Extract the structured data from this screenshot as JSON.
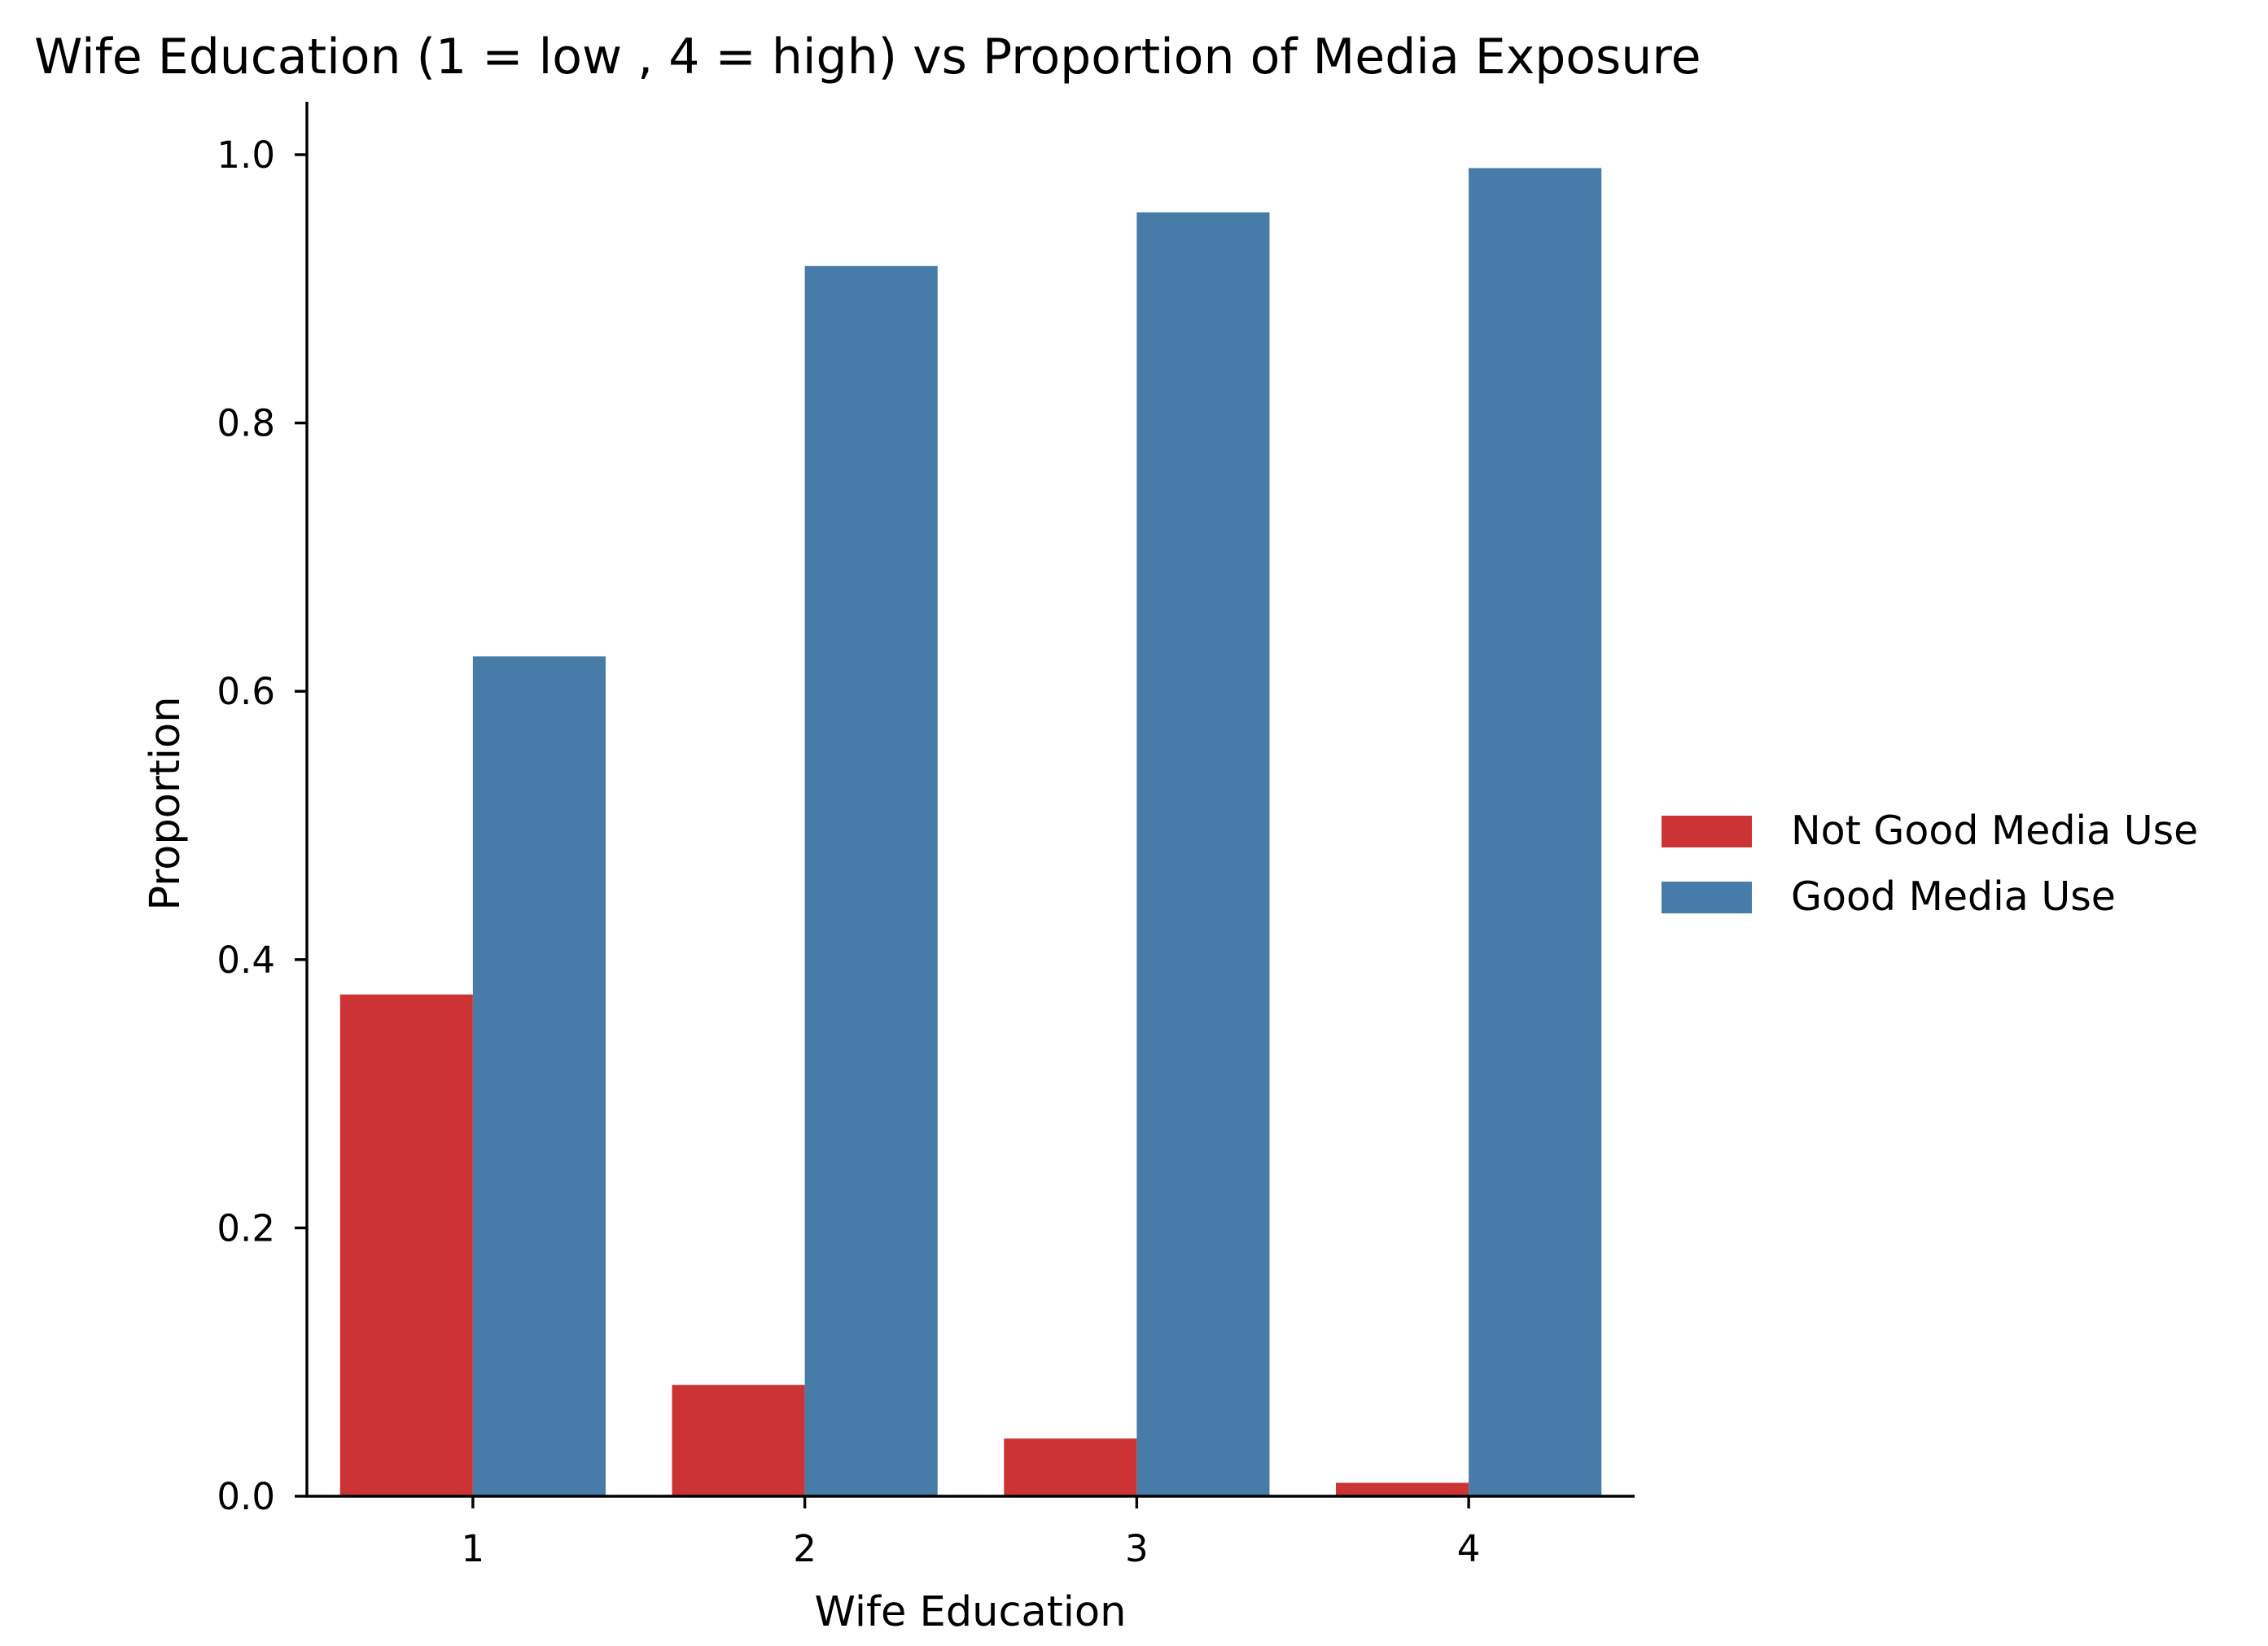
{
  "chart_data": {
    "type": "bar",
    "title": "Wife Education (1 = low , 4 = high) vs Proportion of Media Exposure",
    "xlabel": "Wife Education",
    "ylabel": "Proportion",
    "categories": [
      "1",
      "2",
      "3",
      "4"
    ],
    "ylim": [
      0,
      1.04
    ],
    "yticks": [
      "0.0",
      "0.2",
      "0.4",
      "0.6",
      "0.8",
      "1.0"
    ],
    "ytick_values": [
      0,
      0.2,
      0.4,
      0.6,
      0.8,
      1.0
    ],
    "grid": false,
    "legend_position": "right",
    "series": [
      {
        "name": "Not Good Media Use",
        "color": "#cb3335",
        "values": [
          0.374,
          0.083,
          0.043,
          0.01
        ]
      },
      {
        "name": "Good Media Use",
        "color": "#477ca8",
        "values": [
          0.626,
          0.917,
          0.957,
          0.99
        ]
      }
    ]
  }
}
